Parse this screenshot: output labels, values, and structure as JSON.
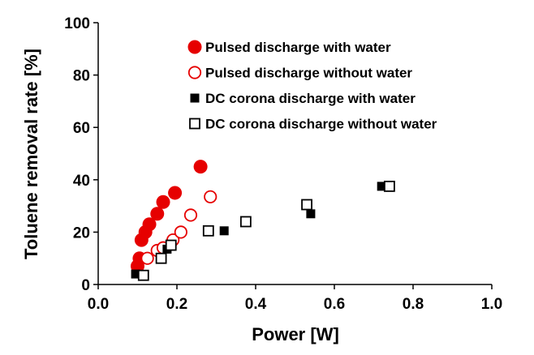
{
  "chart_data": {
    "type": "scatter",
    "xlabel": "Power [W]",
    "ylabel": "Toluene removal rate [%]",
    "xlim": [
      0,
      1.0
    ],
    "ylim": [
      0,
      100
    ],
    "x_ticks": [
      "0.0",
      "0.2",
      "0.4",
      "0.6",
      "0.8",
      "1.0"
    ],
    "y_ticks": [
      "0",
      "20",
      "40",
      "60",
      "80",
      "100"
    ],
    "grid": false,
    "legend_position": "top-right",
    "series": [
      {
        "name": "Pulsed discharge with water",
        "marker": "circle-filled",
        "color": "#e60000",
        "points": [
          {
            "x": 0.1,
            "y": 7
          },
          {
            "x": 0.105,
            "y": 10
          },
          {
            "x": 0.11,
            "y": 17
          },
          {
            "x": 0.12,
            "y": 20
          },
          {
            "x": 0.13,
            "y": 23
          },
          {
            "x": 0.15,
            "y": 27
          },
          {
            "x": 0.165,
            "y": 31.5
          },
          {
            "x": 0.195,
            "y": 35
          },
          {
            "x": 0.26,
            "y": 45
          }
        ]
      },
      {
        "name": "Pulsed discharge without water",
        "marker": "circle-open",
        "color": "#e60000",
        "points": [
          {
            "x": 0.125,
            "y": 10
          },
          {
            "x": 0.15,
            "y": 13
          },
          {
            "x": 0.165,
            "y": 14
          },
          {
            "x": 0.19,
            "y": 17
          },
          {
            "x": 0.21,
            "y": 20
          },
          {
            "x": 0.235,
            "y": 26.5
          },
          {
            "x": 0.285,
            "y": 33.5
          }
        ]
      },
      {
        "name": "DC corona discharge with water",
        "marker": "square-filled",
        "color": "#000000",
        "points": [
          {
            "x": 0.095,
            "y": 4
          },
          {
            "x": 0.175,
            "y": 13.5
          },
          {
            "x": 0.32,
            "y": 20.5
          },
          {
            "x": 0.54,
            "y": 27
          },
          {
            "x": 0.72,
            "y": 37.5
          }
        ]
      },
      {
        "name": "DC corona discharge without water",
        "marker": "square-open",
        "color": "#000000",
        "points": [
          {
            "x": 0.115,
            "y": 3.5
          },
          {
            "x": 0.16,
            "y": 10
          },
          {
            "x": 0.185,
            "y": 15
          },
          {
            "x": 0.28,
            "y": 20.5
          },
          {
            "x": 0.375,
            "y": 24
          },
          {
            "x": 0.53,
            "y": 30.5
          },
          {
            "x": 0.74,
            "y": 37.5
          }
        ]
      }
    ]
  }
}
